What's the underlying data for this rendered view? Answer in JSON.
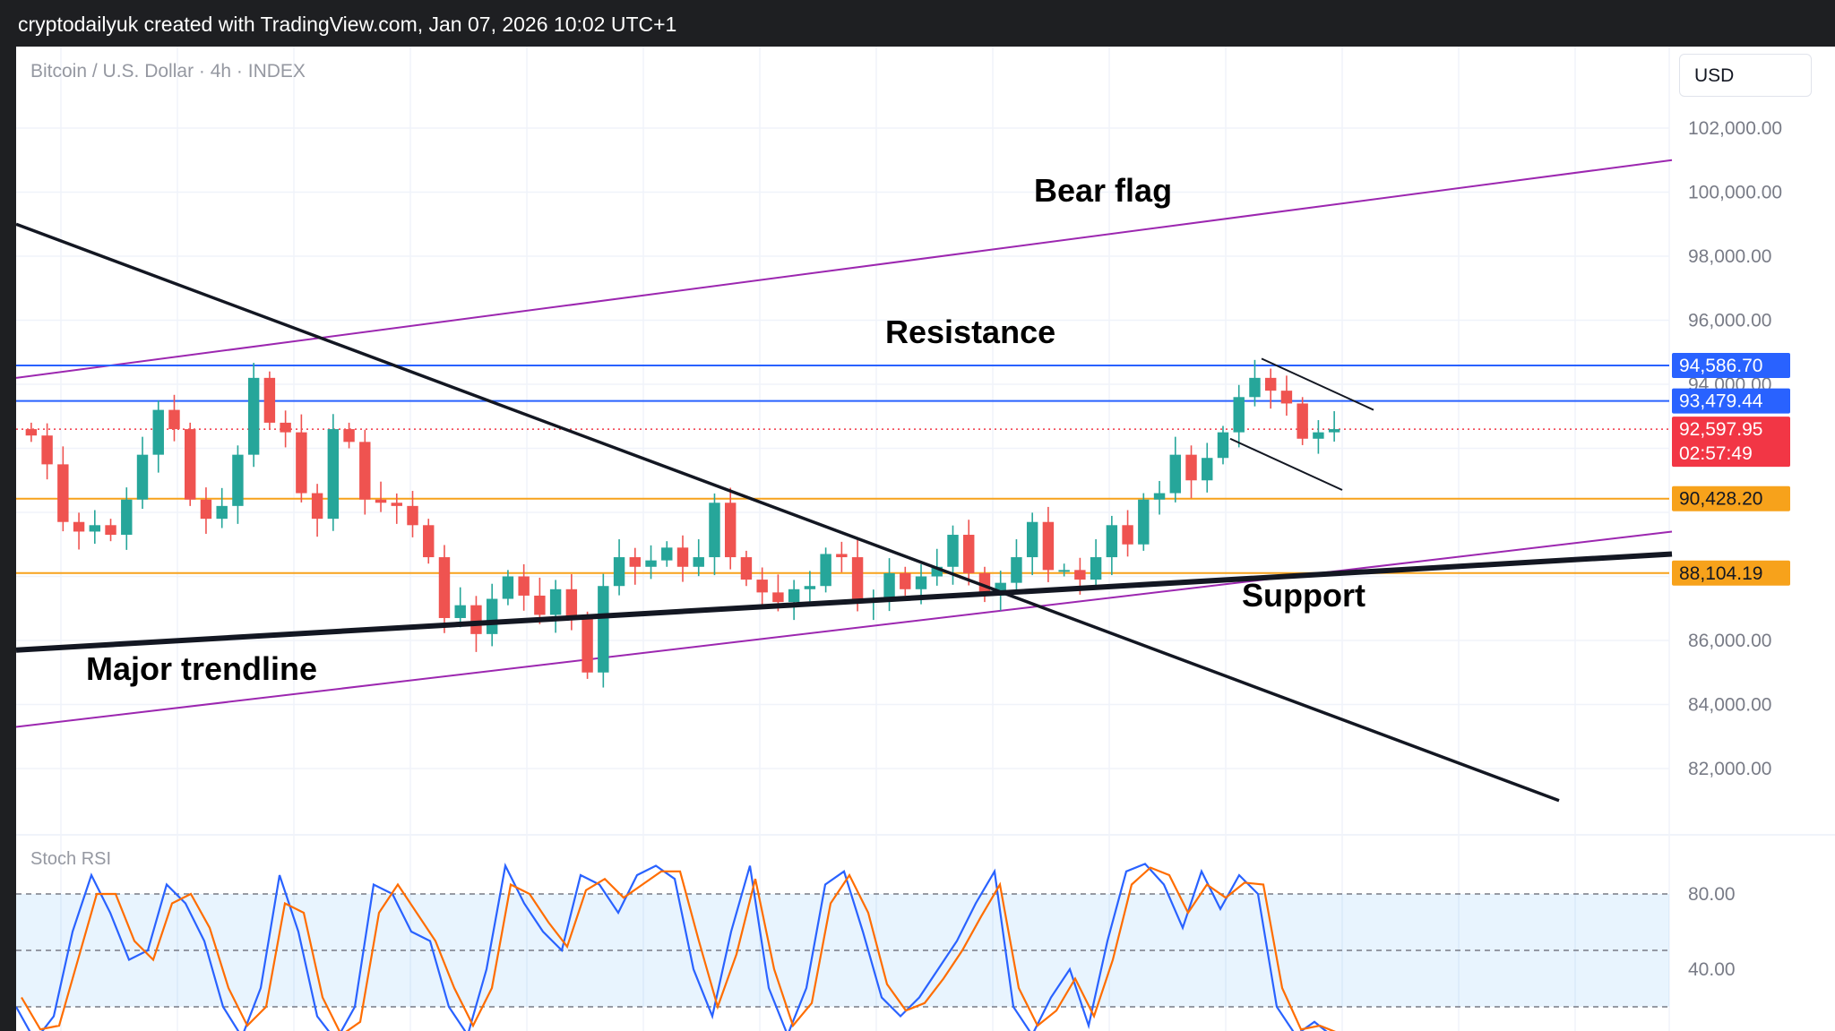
{
  "header": {
    "attribution": "cryptodailyuk created with TradingView.com, Jan 07, 2026 10:02 UTC+1"
  },
  "toolbar": {
    "currency": "USD"
  },
  "chart": {
    "symbol_title": "Bitcoin / U.S. Dollar · 4h · INDEX",
    "indicator_title": "Stoch RSI"
  },
  "annotations": {
    "bear_flag": "Bear flag",
    "resistance": "Resistance",
    "support": "Support",
    "major_trendline": "Major trendline"
  },
  "colors": {
    "bull": "#26a69a",
    "bear": "#ef5350",
    "channel": "#9c27b0",
    "resistance_line": "#2962ff",
    "support_line": "#f7a21b",
    "trendline": "#000000",
    "stoch_k": "#2962ff",
    "stoch_d": "#ff6d00",
    "stoch_band": "#2196f3"
  },
  "chart_data": [
    {
      "type": "candlestick",
      "title": "Bitcoin / U.S. Dollar · 4h · INDEX",
      "ylim": [
        79000,
        104000
      ],
      "y_ticks": [
        82000,
        84000,
        86000,
        88000,
        90000,
        92000,
        94000,
        96000,
        98000,
        100000,
        102000
      ],
      "y_tick_labels": [
        "82,000.00",
        "84,000.00",
        "86,000.00",
        "88,000.00",
        "90,000.00",
        "92,000.00",
        "94,000.00",
        "96,000.00",
        "98,000.00",
        "100,000.00",
        "102,000.00"
      ],
      "grid": true,
      "price_tags": [
        {
          "value": 94586.7,
          "label": "94,586.70",
          "color": "#2962ff"
        },
        {
          "value": 93479.44,
          "label": "93,479.44",
          "color": "#2962ff"
        },
        {
          "value": 92597.95,
          "label": "92,597.95",
          "sublabel": "02:57:49",
          "color": "#f23645"
        },
        {
          "value": 90428.2,
          "label": "90,428.20",
          "color": "#f7a21b"
        },
        {
          "value": 88104.19,
          "label": "88,104.19",
          "color": "#f7a21b"
        }
      ],
      "key_levels": [
        {
          "name": "Resistance",
          "value": 94586.7
        },
        {
          "name": "Resistance",
          "value": 93479.44
        },
        {
          "name": "Support",
          "value": 90428.2
        },
        {
          "name": "Support",
          "value": 88104.19
        }
      ],
      "current_price": 92597.95,
      "countdown": "02:57:49",
      "series_close_path": [
        92400,
        91500,
        89700,
        89400,
        89600,
        89300,
        90400,
        91800,
        93200,
        92600,
        90400,
        89800,
        90200,
        91800,
        94200,
        92800,
        92500,
        90600,
        89800,
        92600,
        92200,
        90400,
        90300,
        90200,
        89600,
        88600,
        86700,
        87100,
        86200,
        87300,
        88000,
        87400,
        86800,
        87600,
        86700,
        85000,
        87700,
        88600,
        88300,
        88500,
        88900,
        88300,
        88600,
        90300,
        88600,
        87900,
        87500,
        87200,
        87600,
        87700,
        88700,
        88600,
        87200,
        87300,
        88100,
        87600,
        88000,
        88300,
        89300,
        88100,
        87400,
        87800,
        88600,
        89700,
        88200,
        88200,
        87900,
        88600,
        89600,
        89000,
        90400,
        90600,
        91800,
        91000,
        91700,
        92500,
        93600,
        94200,
        93800,
        93400,
        92300,
        92500,
        92600
      ]
    },
    {
      "type": "line",
      "title": "Stoch RSI",
      "ylim": [
        0,
        100
      ],
      "y_ticks": [
        40,
        80
      ],
      "y_tick_labels": [
        "40.00",
        "80.00"
      ],
      "bands": [
        20,
        50,
        80
      ],
      "series": [
        {
          "values": [
            20,
            2,
            15,
            60,
            90,
            70,
            45,
            50,
            85,
            75,
            55,
            20,
            4,
            30,
            90,
            60,
            15,
            2,
            20,
            85,
            80,
            60,
            55,
            20,
            5,
            40,
            95,
            75,
            60,
            50,
            90,
            85,
            70,
            90,
            95,
            88,
            40,
            15,
            60,
            95,
            30,
            5,
            30,
            85,
            92,
            60,
            25,
            15,
            25,
            40,
            55,
            75,
            92,
            20,
            5,
            25,
            40,
            10,
            55,
            92,
            96,
            85,
            62,
            92,
            72,
            90,
            80,
            20,
            5,
            12,
            4
          ]
        },
        {
          "values": [
            25,
            8,
            10,
            45,
            80,
            80,
            55,
            45,
            75,
            80,
            62,
            30,
            10,
            20,
            75,
            70,
            25,
            5,
            12,
            70,
            85,
            70,
            55,
            30,
            10,
            30,
            85,
            80,
            65,
            52,
            82,
            88,
            78,
            85,
            92,
            92,
            55,
            20,
            48,
            88,
            40,
            10,
            22,
            75,
            90,
            70,
            32,
            18,
            22,
            35,
            50,
            68,
            85,
            30,
            10,
            18,
            35,
            15,
            45,
            85,
            94,
            90,
            70,
            85,
            78,
            86,
            85,
            30,
            8,
            10,
            6
          ]
        }
      ]
    }
  ]
}
